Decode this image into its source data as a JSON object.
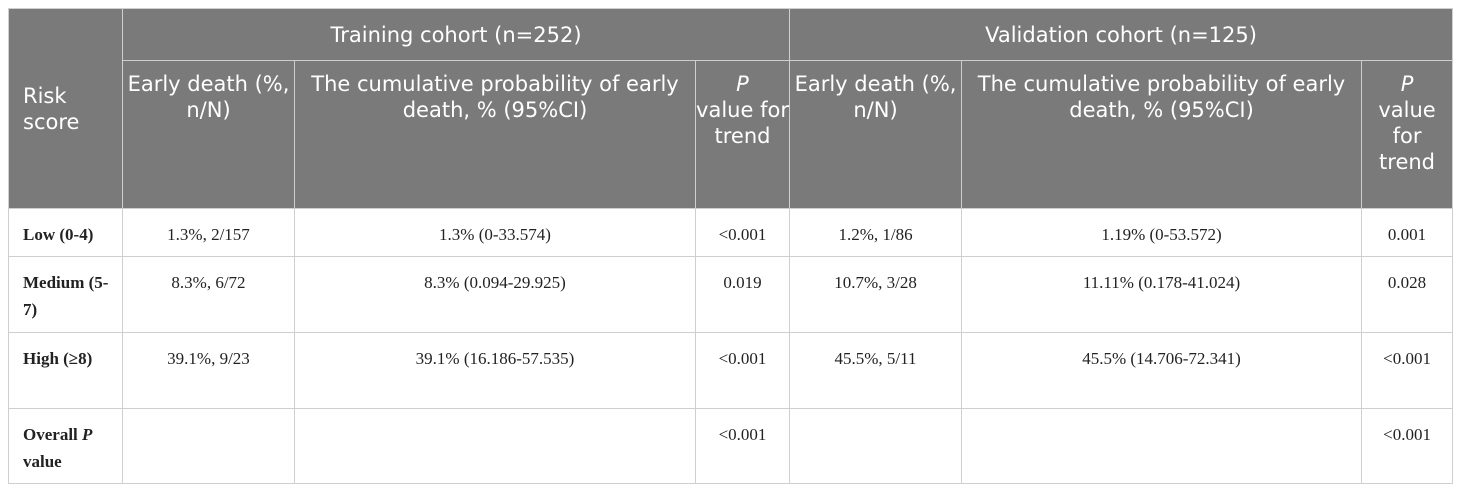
{
  "header": {
    "risk_score": "Risk score",
    "training_group": "Training cohort (n=252)",
    "validation_group": "Validation cohort (n=125)",
    "early_death": "Early death (%, n/N)",
    "cumulative_prob": "The cumulative probability of early death, % (95%CI)",
    "p_letter": "P",
    "p_rest": "value for trend"
  },
  "rows": [
    {
      "label": "Low (0-4)",
      "t_early": "1.3%, 2/157",
      "t_cum": "1.3% (0-33.574)",
      "t_p": "<0.001",
      "v_early": "1.2%, 1/86",
      "v_cum": "1.19% (0-53.572)",
      "v_p": "0.001"
    },
    {
      "label": "Medium (5-7)",
      "t_early": "8.3%, 6/72",
      "t_cum": "8.3% (0.094-29.925)",
      "t_p": "0.019",
      "v_early": "10.7%, 3/28",
      "v_cum": "11.11% (0.178-41.024)",
      "v_p": "0.028"
    },
    {
      "label": "High (≥8)",
      "t_early": "39.1%, 9/23",
      "t_cum": "39.1% (16.186-57.535)",
      "t_p": "<0.001",
      "v_early": "45.5%, 5/11",
      "v_cum": "45.5% (14.706-72.341)",
      "v_p": "<0.001"
    }
  ],
  "overall": {
    "label_prefix": "Overall",
    "label_p": "P",
    "label_suffix": "value",
    "t_p": "<0.001",
    "v_p": "<0.001"
  }
}
